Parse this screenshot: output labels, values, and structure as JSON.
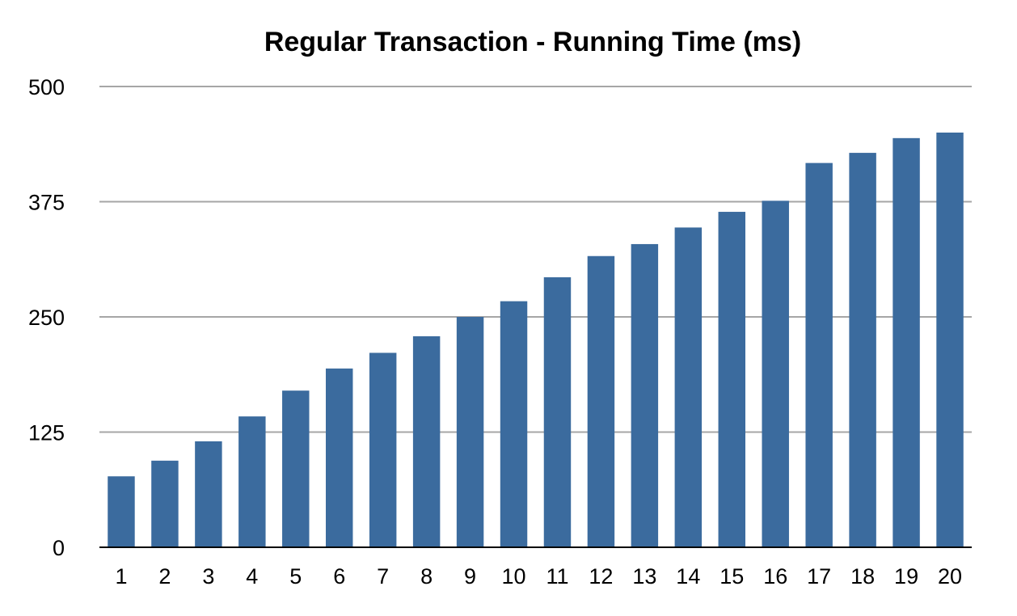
{
  "chart_data": {
    "type": "bar",
    "title": "Regular Transaction - Running Time (ms)",
    "xlabel": "",
    "ylabel": "",
    "categories": [
      "1",
      "2",
      "3",
      "4",
      "5",
      "6",
      "7",
      "8",
      "9",
      "10",
      "11",
      "12",
      "13",
      "14",
      "15",
      "16",
      "17",
      "18",
      "19",
      "20"
    ],
    "values": [
      77,
      94,
      115,
      142,
      170,
      194,
      211,
      229,
      250,
      267,
      293,
      316,
      329,
      347,
      364,
      376,
      417,
      428,
      444,
      450
    ],
    "ylim": [
      0,
      500
    ],
    "yticks": [
      "0",
      "125",
      "250",
      "375",
      "500"
    ],
    "grid": true,
    "legend": "none",
    "colors": {
      "bar": "#3b6b9e",
      "grid": "#a6a6a6",
      "axis": "#000000"
    }
  }
}
